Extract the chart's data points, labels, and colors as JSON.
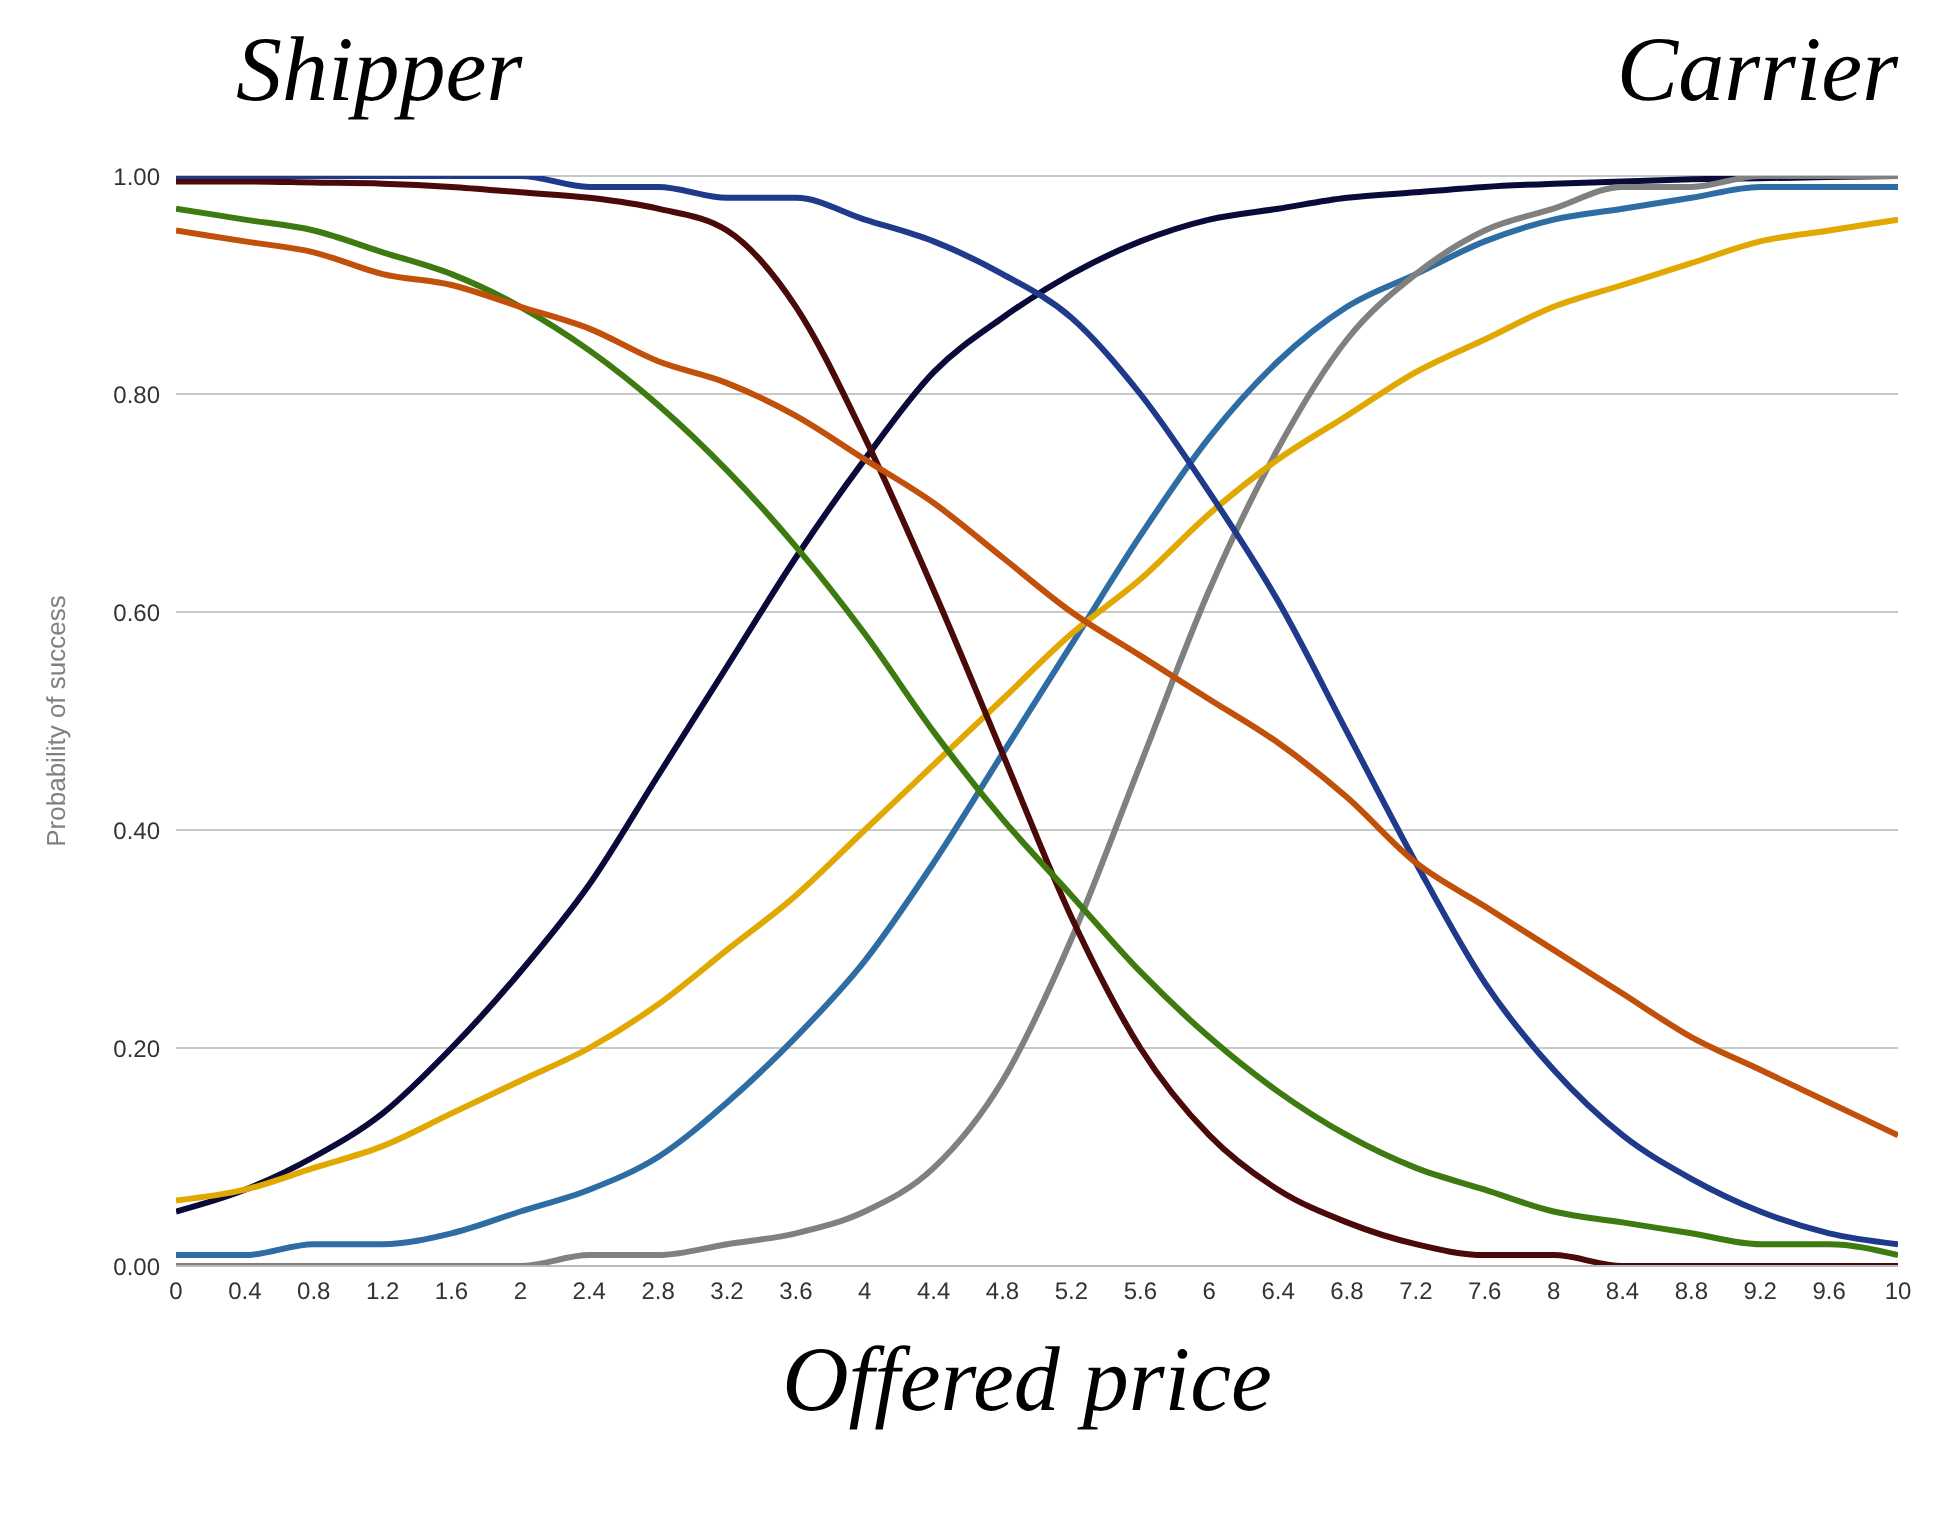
{
  "chart_data": {
    "type": "line",
    "xlabel": "Offered price",
    "ylabel": "Probability of success",
    "annotations": [
      "Shipper",
      "Carrier"
    ],
    "x": [
      0,
      0.4,
      0.8,
      1.2,
      1.6,
      2,
      2.4,
      2.8,
      3.2,
      3.6,
      4,
      4.4,
      4.8,
      5.2,
      5.6,
      6,
      6.4,
      6.8,
      7.2,
      7.6,
      8,
      8.4,
      8.8,
      9.2,
      9.6,
      10
    ],
    "xlim": [
      0,
      10
    ],
    "xticks": [
      0,
      0.4,
      0.8,
      1.2,
      1.6,
      2,
      2.4,
      2.8,
      3.2,
      3.6,
      4,
      4.4,
      4.8,
      5.2,
      5.6,
      6,
      6.4,
      6.8,
      7.2,
      7.6,
      8,
      8.4,
      8.8,
      9.2,
      9.6,
      10
    ],
    "ylim": [
      0,
      1
    ],
    "yticks": [
      {
        "value": 0,
        "label": "0.00"
      },
      {
        "value": 0.2,
        "label": "0.20"
      },
      {
        "value": 0.4,
        "label": "0.40"
      },
      {
        "value": 0.6,
        "label": "0.60"
      },
      {
        "value": 0.8,
        "label": "0.80"
      },
      {
        "value": 1,
        "label": "1.00"
      }
    ],
    "grid": "y",
    "marker": "none",
    "line_style": "solid",
    "series": [
      {
        "color": "#0a0a3a",
        "values": [
          0.05,
          0.07,
          0.1,
          0.14,
          0.2,
          0.27,
          0.35,
          0.45,
          0.55,
          0.65,
          0.74,
          0.82,
          0.87,
          0.91,
          0.94,
          0.96,
          0.97,
          0.98,
          0.985,
          0.99,
          0.993,
          0.995,
          0.997,
          0.998,
          0.999,
          1
        ]
      },
      {
        "color": "#2e6da4",
        "values": [
          0.01,
          0.01,
          0.02,
          0.02,
          0.03,
          0.05,
          0.07,
          0.1,
          0.15,
          0.21,
          0.28,
          0.37,
          0.47,
          0.57,
          0.67,
          0.76,
          0.83,
          0.88,
          0.91,
          0.94,
          0.96,
          0.97,
          0.98,
          0.99,
          0.99,
          0.99
        ]
      },
      {
        "color": "#808080",
        "values": [
          0,
          0,
          0,
          0,
          0,
          0,
          0.01,
          0.01,
          0.02,
          0.03,
          0.05,
          0.09,
          0.17,
          0.3,
          0.46,
          0.62,
          0.75,
          0.85,
          0.91,
          0.95,
          0.97,
          0.99,
          0.99,
          1,
          1,
          1
        ]
      },
      {
        "color": "#e0a800",
        "values": [
          0.06,
          0.07,
          0.09,
          0.11,
          0.14,
          0.17,
          0.2,
          0.24,
          0.29,
          0.34,
          0.4,
          0.46,
          0.52,
          0.58,
          0.63,
          0.69,
          0.74,
          0.78,
          0.82,
          0.85,
          0.88,
          0.9,
          0.92,
          0.94,
          0.95,
          0.96
        ]
      },
      {
        "color": "#4a0a0a",
        "values": [
          0.995,
          0.995,
          0.994,
          0.993,
          0.99,
          0.985,
          0.98,
          0.97,
          0.95,
          0.88,
          0.76,
          0.62,
          0.47,
          0.32,
          0.2,
          0.12,
          0.07,
          0.04,
          0.02,
          0.01,
          0.01,
          0,
          0,
          0,
          0,
          0
        ]
      },
      {
        "color": "#1f3a8a",
        "values": [
          1,
          1,
          1,
          1,
          1,
          1,
          0.99,
          0.99,
          0.98,
          0.98,
          0.96,
          0.94,
          0.91,
          0.87,
          0.8,
          0.71,
          0.61,
          0.49,
          0.37,
          0.26,
          0.18,
          0.12,
          0.08,
          0.05,
          0.03,
          0.02
        ]
      },
      {
        "color": "#3d7a10",
        "values": [
          0.97,
          0.96,
          0.95,
          0.93,
          0.91,
          0.88,
          0.84,
          0.79,
          0.73,
          0.66,
          0.58,
          0.49,
          0.41,
          0.34,
          0.27,
          0.21,
          0.16,
          0.12,
          0.09,
          0.07,
          0.05,
          0.04,
          0.03,
          0.02,
          0.02,
          0.01
        ]
      },
      {
        "color": "#c0500a",
        "values": [
          0.95,
          0.94,
          0.93,
          0.91,
          0.9,
          0.88,
          0.86,
          0.83,
          0.81,
          0.78,
          0.74,
          0.7,
          0.65,
          0.6,
          0.56,
          0.52,
          0.48,
          0.43,
          0.37,
          0.33,
          0.29,
          0.25,
          0.21,
          0.18,
          0.15,
          0.12
        ]
      }
    ]
  }
}
